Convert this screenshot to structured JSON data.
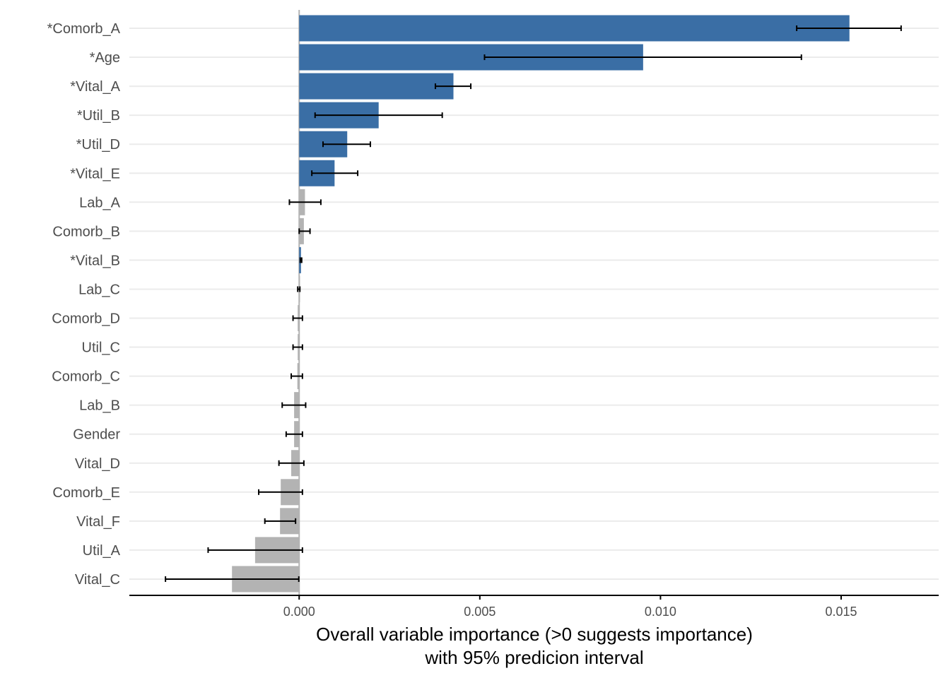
{
  "chart_data": {
    "type": "bar",
    "orientation": "horizontal",
    "title": "",
    "xlabel": "Overall variable importance (>0 suggests importance)\nwith 95% predicion interval",
    "xlabel_lines": [
      "Overall variable importance (>0 suggests importance)",
      "with 95% predicion interval"
    ],
    "ylabel": "",
    "xlim": [
      -0.0047,
      0.0177
    ],
    "x_ticks": [
      0.0,
      0.005,
      0.01,
      0.015
    ],
    "x_tick_labels": [
      "0.000",
      "0.005",
      "0.010",
      "0.015"
    ],
    "grid": "horizontal major lines only",
    "legend": "none",
    "colors": {
      "significant": "#3a6ea5",
      "not_significant": "#b3b3b3",
      "errorbar": "#000000",
      "gridline": "#ebebeb",
      "zero_line": "#b3b3b3"
    },
    "categories": [
      "*Comorb_A",
      "*Age",
      "*Vital_A",
      "*Util_B",
      "*Util_D",
      "*Vital_E",
      "Lab_A",
      "Comorb_B",
      "*Vital_B",
      "Lab_C",
      "Comorb_D",
      "Util_C",
      "Comorb_C",
      "Lab_B",
      "Gender",
      "Vital_D",
      "Comorb_E",
      "Vital_F",
      "Util_A",
      "Vital_C"
    ],
    "values": [
      0.01523,
      0.00952,
      0.00427,
      0.0022,
      0.00133,
      0.00098,
      0.00016,
      0.00013,
      5e-05,
      0.0,
      -4e-05,
      -4e-05,
      -5e-05,
      -0.00014,
      -0.00014,
      -0.00022,
      -0.00051,
      -0.00053,
      -0.00122,
      -0.00186
    ],
    "ci_low": [
      0.01377,
      0.00513,
      0.00377,
      0.00044,
      0.00066,
      0.00035,
      -0.00027,
      0.0,
      3e-05,
      -4e-05,
      -0.00017,
      -0.00017,
      -0.00022,
      -0.00047,
      -0.00036,
      -0.00056,
      -0.00112,
      -0.00095,
      -0.00252,
      -0.0037
    ],
    "ci_high": [
      0.01666,
      0.0139,
      0.00475,
      0.00396,
      0.00197,
      0.00162,
      0.0006,
      0.0003,
      7e-05,
      2e-05,
      9e-05,
      9e-05,
      9e-05,
      0.00018,
      9e-05,
      0.00013,
      9e-05,
      -0.0001,
      9e-05,
      -1e-05
    ],
    "significant": [
      true,
      true,
      true,
      true,
      true,
      true,
      false,
      false,
      true,
      false,
      false,
      false,
      false,
      false,
      false,
      false,
      false,
      false,
      false,
      false
    ]
  }
}
